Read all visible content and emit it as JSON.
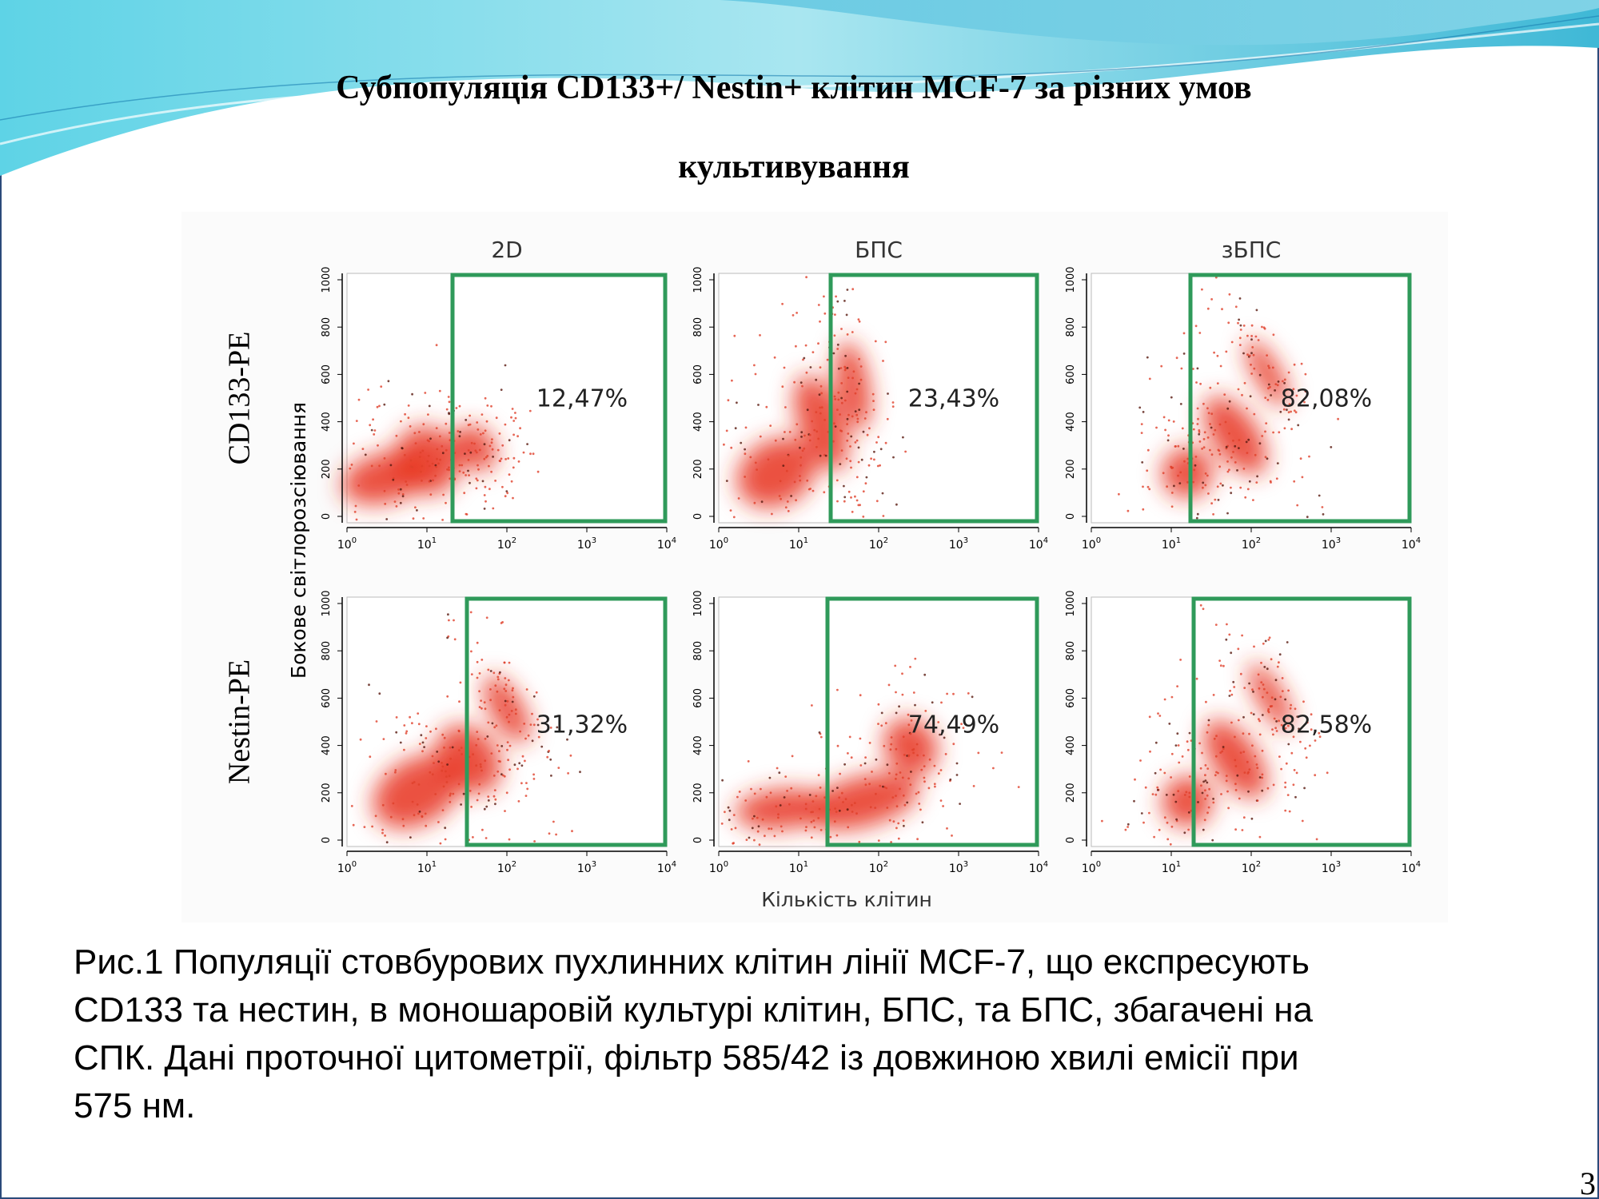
{
  "title": [
    "Субпопуляція CD133+/ Nestin+ клітин MCF-7 за різних умов",
    "культивування"
  ],
  "figure": {
    "columns": [
      "2D",
      "БПС",
      "зБПС"
    ],
    "rows": [
      "CD133-PE",
      "Nestin-PE"
    ],
    "y_axis_label": "Бокове світлорозсіювання",
    "x_axis_label": "Кількість клітин",
    "yticks": [
      "0",
      "200",
      "400",
      "600",
      "800",
      "1000"
    ],
    "xticks": [
      {
        "base": "10",
        "exponent": "0"
      },
      {
        "base": "10",
        "exponent": "1"
      },
      {
        "base": "10",
        "exponent": "2"
      },
      {
        "base": "10",
        "exponent": "3"
      },
      {
        "base": "10",
        "exponent": "4"
      }
    ],
    "gate_percentages": [
      [
        "12,47%",
        "23,43%",
        "82,08%"
      ],
      [
        "31,32%",
        "74,49%",
        "82,58%"
      ]
    ]
  },
  "caption": [
    "Рис.1 Популяції стовбурових пухлинних клітин лінії MCF-7, що експресують",
    "CD133 та нестин, в моношаровій культурі клітин, БПС, та БПС, збагачені на",
    "СПК. Дані проточної цитометрії, фільтр 585/42 із довжиною хвилі емісії при",
    "575 нм."
  ],
  "page_number": "3"
}
